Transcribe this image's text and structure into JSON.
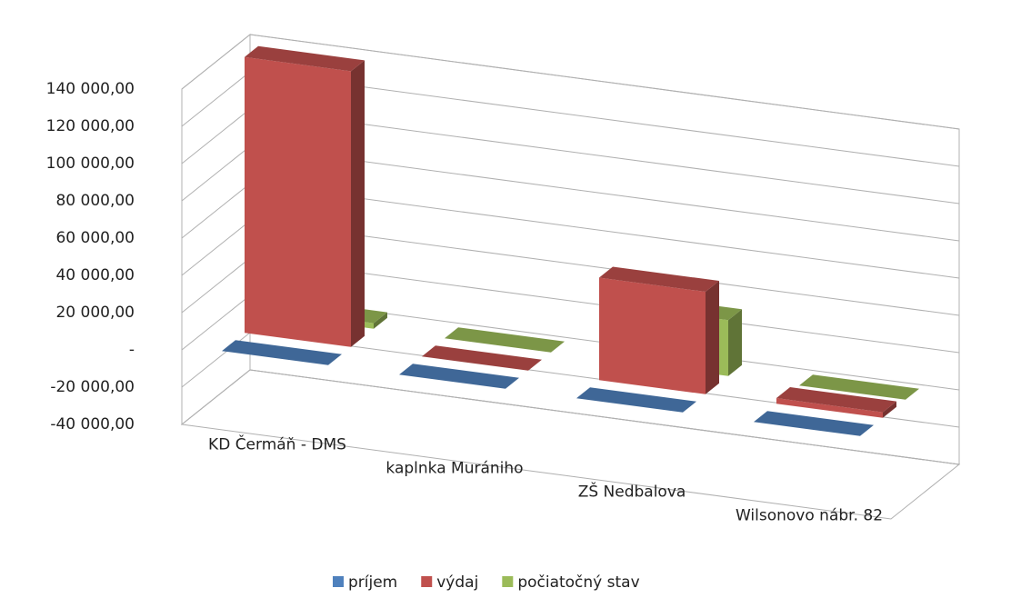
{
  "chart_data": {
    "type": "bar",
    "categories": [
      "KD Čermáň - DMS",
      "kaplnka Murániho",
      "ZŠ Nedbalova",
      "Wilsonovo nábr. 82"
    ],
    "series": [
      {
        "name": "príjem",
        "color": "#4f81bd",
        "values": [
          0,
          0,
          0,
          0
        ]
      },
      {
        "name": "výdaj",
        "color": "#c0504d",
        "values": [
          148000,
          0,
          55000,
          3000
        ]
      },
      {
        "name": "počiatočný stav",
        "color": "#9bbb59",
        "values": [
          3000,
          0,
          30000,
          0
        ]
      }
    ],
    "ylim": [
      -40000,
      140000
    ],
    "yticks": [
      {
        "value": -40000,
        "label": "-40 000,00"
      },
      {
        "value": -20000,
        "label": "-20 000,00"
      },
      {
        "value": 0,
        "label": "-"
      },
      {
        "value": 20000,
        "label": "20 000,00"
      },
      {
        "value": 40000,
        "label": "40 000,00"
      },
      {
        "value": 60000,
        "label": "60 000,00"
      },
      {
        "value": 80000,
        "label": "80 000,00"
      },
      {
        "value": 100000,
        "label": "100 000,00"
      },
      {
        "value": 120000,
        "label": "120 000,00"
      },
      {
        "value": 140000,
        "label": "140 000,00"
      }
    ],
    "grid": true,
    "legend": "bottom"
  }
}
